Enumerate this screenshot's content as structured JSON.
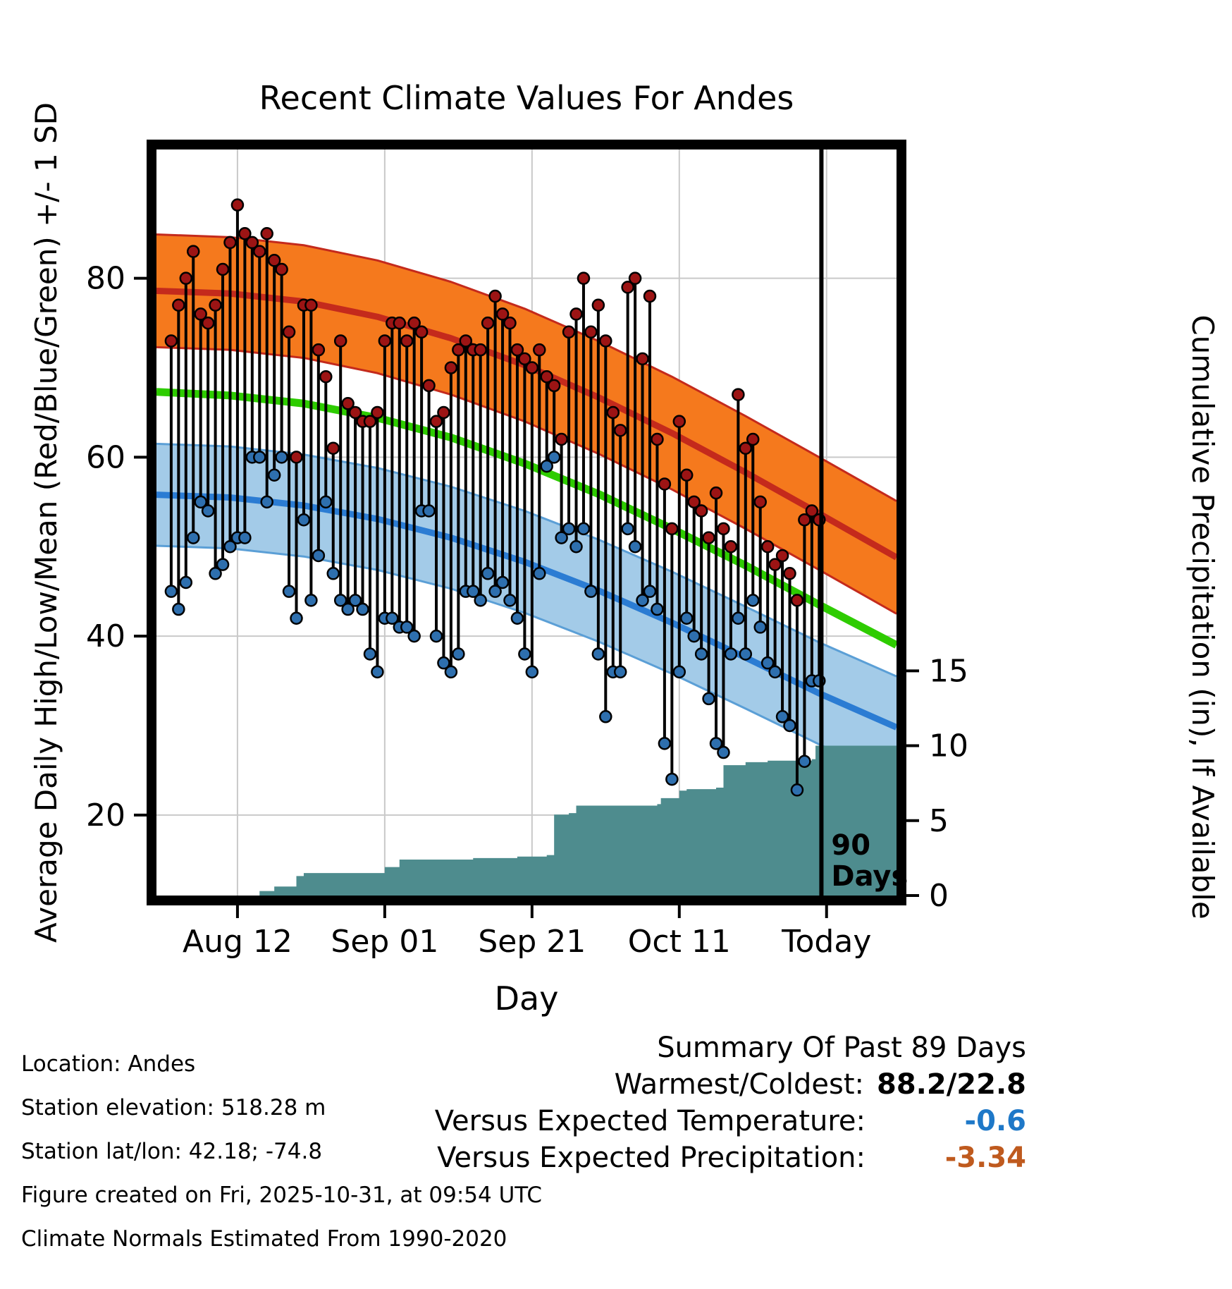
{
  "chart_data": {
    "type": "line",
    "title": "Recent Climate Values For Andes",
    "xlabel": "Day",
    "ylabel_left": "Average Daily High/Low/Mean (Red/Blue/Green) +/- 1 SD",
    "ylabel_right": "Cumulative Precipitation (in), If Available",
    "x_range_days": [
      -2,
      98.5
    ],
    "ylim_left": [
      11,
      94.4
    ],
    "ylim_right": [
      0,
      49.8
    ],
    "x_ticks": [
      {
        "day": 9,
        "label": "Aug 12"
      },
      {
        "day": 29,
        "label": "Sep 01"
      },
      {
        "day": 49,
        "label": "Sep 21"
      },
      {
        "day": 69,
        "label": "Oct 11"
      },
      {
        "day": 89,
        "label": "Today"
      }
    ],
    "y_ticks_left": [
      20,
      40,
      60,
      80
    ],
    "y_ticks_right": [
      0,
      5,
      10,
      15
    ],
    "grid": true,
    "daily_high": [
      73,
      77,
      80,
      83,
      76,
      75,
      77,
      81,
      84,
      88.2,
      85,
      84,
      83,
      85,
      82,
      81,
      74,
      60,
      77,
      77,
      72,
      69,
      61,
      73,
      66,
      65,
      64,
      64,
      65,
      73,
      75,
      75,
      73,
      75,
      74,
      68,
      64,
      65,
      70,
      72,
      73,
      72,
      72,
      75,
      78,
      76,
      75,
      72,
      71,
      70,
      72,
      69,
      68,
      62,
      74,
      76,
      80,
      74,
      77,
      73,
      65,
      63,
      79,
      80,
      71,
      78,
      62,
      57,
      52,
      64,
      58,
      55,
      54,
      51,
      56,
      52,
      50,
      67,
      61,
      62,
      55,
      50,
      48,
      49,
      47,
      44,
      53,
      54,
      53
    ],
    "daily_low": [
      45,
      43,
      46,
      51,
      55,
      54,
      47,
      48,
      50,
      51,
      51,
      60,
      60,
      55,
      58,
      60,
      45,
      42,
      53,
      44,
      49,
      55,
      47,
      44,
      43,
      44,
      43,
      38,
      36,
      42,
      42,
      41,
      41,
      40,
      54,
      54,
      40,
      37,
      36,
      38,
      45,
      45,
      44,
      47,
      45,
      46,
      44,
      42,
      38,
      36,
      47,
      59,
      60,
      51,
      52,
      50,
      52,
      45,
      38,
      31,
      36,
      36,
      52,
      50,
      44,
      45,
      43,
      28,
      24,
      36,
      42,
      40,
      38,
      33,
      28,
      27,
      38,
      42,
      38,
      44,
      41,
      37,
      36,
      31,
      30,
      22.8,
      26,
      35,
      35
    ],
    "normals": {
      "days": [
        -2,
        8,
        18,
        28,
        38,
        48,
        58,
        68,
        78,
        88,
        98.5
      ],
      "high_mean": [
        78.6,
        78.3,
        77.4,
        75.7,
        73.3,
        70.3,
        66.7,
        62.7,
        58.3,
        53.7,
        48.8
      ],
      "mean": [
        67.3,
        66.9,
        66.0,
        64.4,
        62.2,
        59.3,
        55.9,
        52.0,
        47.9,
        43.5,
        39.0
      ],
      "low_mean": [
        55.8,
        55.5,
        54.6,
        53.1,
        51.0,
        48.3,
        45.1,
        41.5,
        37.6,
        33.6,
        29.8
      ],
      "high_sd": 6.3,
      "low_sd": 5.7
    },
    "precip_steps": [
      [
        -2,
        0
      ],
      [
        11,
        0
      ],
      [
        12,
        0.3
      ],
      [
        14,
        0.6
      ],
      [
        17,
        1.3
      ],
      [
        18,
        1.5
      ],
      [
        28,
        1.5
      ],
      [
        29,
        1.9
      ],
      [
        31,
        2.4
      ],
      [
        41,
        2.5
      ],
      [
        47,
        2.6
      ],
      [
        51,
        2.7
      ],
      [
        52,
        5.4
      ],
      [
        54,
        5.5
      ],
      [
        55,
        6.0
      ],
      [
        66,
        6.1
      ],
      [
        66.5,
        6.5
      ],
      [
        69,
        7.0
      ],
      [
        70,
        7.1
      ],
      [
        74,
        7.2
      ],
      [
        75,
        8.7
      ],
      [
        78,
        8.9
      ],
      [
        81,
        9.0
      ],
      [
        87,
        9.1
      ],
      [
        87.5,
        10.0
      ],
      [
        98.5,
        10.0
      ]
    ],
    "vline": {
      "day": 88.3,
      "label_line1": "90",
      "label_line2": "Days"
    },
    "colors": {
      "high_band": "#f5791d",
      "high_line": "#c42a1c",
      "low_band": "#a3cbe8",
      "low_edge": "#5b9fd6",
      "low_line": "#2b7cd3",
      "mean_line": "#2ecc00",
      "precip_fill": "#4e8c8e",
      "high_dot": "#9c1414",
      "low_dot": "#2e6fae",
      "grid": "#c9c9c9"
    }
  },
  "footer_left": {
    "lines": [
      "Location: Andes",
      "Station elevation: 518.28 m",
      "Station lat/lon: 42.18; -74.8",
      "Figure created on Fri, 2025-10-31, at 09:54 UTC",
      "Climate Normals Estimated From 1990-2020"
    ]
  },
  "summary": {
    "title": "Summary Of Past 89 Days",
    "rows": [
      {
        "label": "Warmest/Coldest:",
        "value": "88.2/22.8",
        "color": "#000000"
      },
      {
        "label": "Versus Expected Temperature:",
        "value": "-0.6",
        "color": "#1e78c8"
      },
      {
        "label": "Versus Expected Precipitation:",
        "value": "-3.34",
        "color": "#bf5a1e"
      }
    ]
  }
}
